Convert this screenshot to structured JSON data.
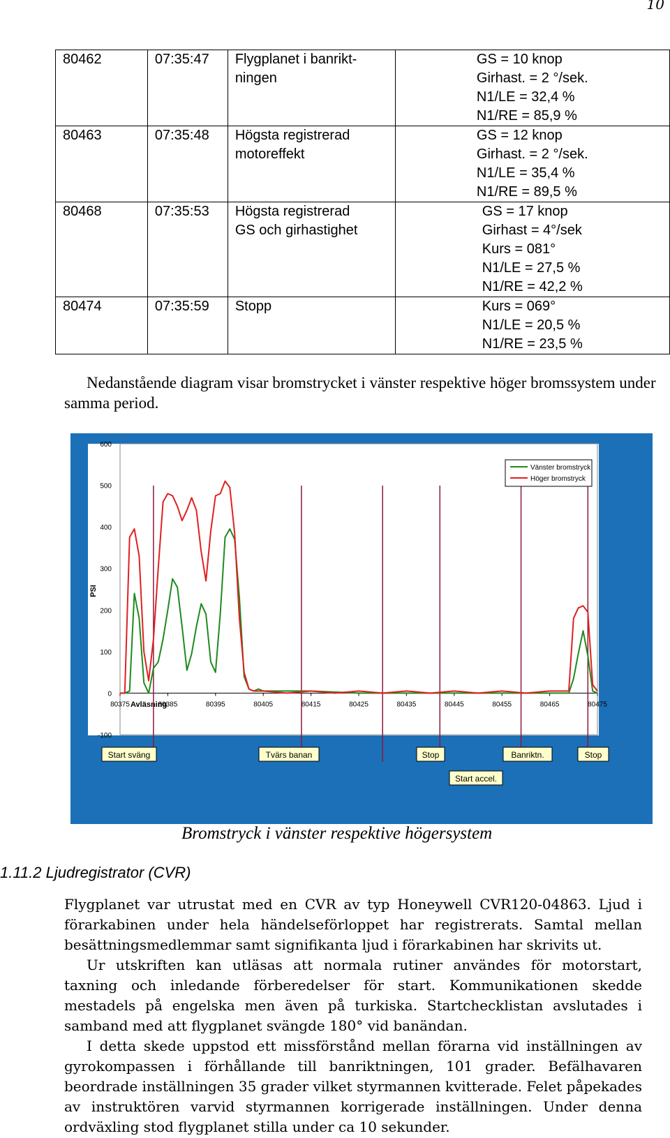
{
  "page_number": "10",
  "table": {
    "rows": [
      {
        "id": "80462",
        "time": "07:35:47",
        "event": "Flygplanet i banrikt-\nningen",
        "values": [
          "GS = 10 knop",
          "Girhast. = 2 °/sek.",
          "N1/LE = 32,4 %",
          "N1/RE = 85,9 %"
        ]
      },
      {
        "id": "80463",
        "time": "07:35:48",
        "event": "Högsta registrerad\nmotoreffekt",
        "values": [
          "GS = 12 knop",
          "Girhast. = 2 °/sek.",
          "N1/LE = 35,4 %",
          "N1/RE = 89,5 %"
        ]
      },
      {
        "id": "80468",
        "time": "07:35:53",
        "event": "Högsta registrerad\nGS och girhastighet",
        "values": [
          "GS = 17 knop",
          "Girhast = 4°/sek",
          "Kurs = 081°",
          "N1/LE = 27,5 %",
          "N1/RE = 42,2 %"
        ]
      },
      {
        "id": "80474",
        "time": "07:35:59",
        "event": "Stopp",
        "values": [
          "Kurs = 069°",
          "N1/LE = 20,5 %",
          "N1/RE = 23,5 %"
        ]
      }
    ]
  },
  "intro_text": "Nedanstående diagram visar bromstrycket i vänster respektive höger bromssystem under samma period.",
  "chart_data": {
    "type": "line",
    "ylabel": "PSI",
    "xlabel": "Avläsning",
    "ylim": [
      -100,
      600
    ],
    "yticks": [
      -100,
      0,
      100,
      200,
      300,
      400,
      500,
      600
    ],
    "xlim": [
      80375,
      80475
    ],
    "xticks": [
      80375,
      80385,
      80395,
      80405,
      80415,
      80425,
      80435,
      80445,
      80455,
      80465,
      80475
    ],
    "series": [
      {
        "name": "Vänster bromstryck",
        "color": "#1e8a1e",
        "points": [
          [
            80375,
            0
          ],
          [
            80376,
            0
          ],
          [
            80377,
            5
          ],
          [
            80378,
            240
          ],
          [
            80379,
            180
          ],
          [
            80380,
            25
          ],
          [
            80381,
            0
          ],
          [
            80382,
            60
          ],
          [
            80383,
            75
          ],
          [
            80384,
            130
          ],
          [
            80385,
            200
          ],
          [
            80386,
            275
          ],
          [
            80387,
            255
          ],
          [
            80388,
            160
          ],
          [
            80389,
            55
          ],
          [
            80390,
            95
          ],
          [
            80391,
            160
          ],
          [
            80392,
            215
          ],
          [
            80393,
            190
          ],
          [
            80394,
            75
          ],
          [
            80395,
            50
          ],
          [
            80396,
            190
          ],
          [
            80397,
            375
          ],
          [
            80398,
            395
          ],
          [
            80399,
            370
          ],
          [
            80400,
            230
          ],
          [
            80401,
            40
          ],
          [
            80402,
            10
          ],
          [
            80403,
            5
          ],
          [
            80404,
            10
          ],
          [
            80405,
            5
          ],
          [
            80415,
            5
          ],
          [
            80425,
            0
          ],
          [
            80435,
            0
          ],
          [
            80445,
            0
          ],
          [
            80455,
            0
          ],
          [
            80465,
            0
          ],
          [
            80469,
            0
          ],
          [
            80470,
            35
          ],
          [
            80471,
            95
          ],
          [
            80472,
            150
          ],
          [
            80473,
            90
          ],
          [
            80474,
            5
          ],
          [
            80475,
            0
          ]
        ]
      },
      {
        "name": "Höger bromstryck",
        "color": "#e02020",
        "points": [
          [
            80375,
            0
          ],
          [
            80376,
            0
          ],
          [
            80377,
            375
          ],
          [
            80378,
            395
          ],
          [
            80379,
            330
          ],
          [
            80380,
            100
          ],
          [
            80381,
            30
          ],
          [
            80382,
            130
          ],
          [
            80383,
            300
          ],
          [
            80384,
            460
          ],
          [
            80385,
            480
          ],
          [
            80386,
            475
          ],
          [
            80387,
            450
          ],
          [
            80388,
            415
          ],
          [
            80389,
            440
          ],
          [
            80390,
            470
          ],
          [
            80391,
            440
          ],
          [
            80392,
            340
          ],
          [
            80393,
            270
          ],
          [
            80394,
            390
          ],
          [
            80395,
            475
          ],
          [
            80396,
            480
          ],
          [
            80397,
            510
          ],
          [
            80398,
            495
          ],
          [
            80399,
            385
          ],
          [
            80400,
            180
          ],
          [
            80401,
            50
          ],
          [
            80402,
            10
          ],
          [
            80403,
            5
          ],
          [
            80405,
            5
          ],
          [
            80410,
            0
          ],
          [
            80415,
            5
          ],
          [
            80420,
            0
          ],
          [
            80425,
            5
          ],
          [
            80430,
            0
          ],
          [
            80435,
            5
          ],
          [
            80440,
            0
          ],
          [
            80445,
            5
          ],
          [
            80450,
            0
          ],
          [
            80455,
            5
          ],
          [
            80460,
            0
          ],
          [
            80465,
            5
          ],
          [
            80469,
            5
          ],
          [
            80470,
            180
          ],
          [
            80471,
            205
          ],
          [
            80472,
            210
          ],
          [
            80473,
            195
          ],
          [
            80474,
            20
          ],
          [
            80475,
            5
          ]
        ]
      }
    ],
    "event_lines": [
      80382,
      80413,
      80430,
      80442,
      80459,
      80473
    ],
    "annotations": [
      "Start sväng",
      "Tvärs banan",
      "Stop",
      "Banriktn.",
      "Stop",
      "Start accel."
    ],
    "legend_position": "top-right"
  },
  "caption": "Bromstryck i vänster respektive högersystem",
  "section_heading": "1.11.2 Ljudregistrator (CVR)",
  "paragraphs": [
    "Flygplanet var utrustat med en CVR av typ Honeywell CVR120-04863. Ljud i förarkabinen under hela händelseförloppet har registrerats. Samtal mellan besättningsmedlemmar samt signifikanta ljud i förarkabinen har skrivits ut.",
    "Ur utskriften kan utläsas att normala rutiner användes för motorstart, taxning och inledande förberedelser för start. Kommunikationen skedde mestadels på engelska men även på turkiska. Startchecklistan avslutades i samband med att flygplanet svängde 180° vid banändan.",
    "I detta skede uppstod ett missförstånd mellan förarna vid inställningen av gyrokompassen i förhållande till banriktningen, 101 grader. Befälhavaren beordrade inställningen 35 grader vilket styrmannen kvitterade. Felet påpekades av instruktören varvid styrmannen korrigerade inställningen. Under denna ordväxling stod flygplanet stilla under ca 10 sekunder."
  ]
}
